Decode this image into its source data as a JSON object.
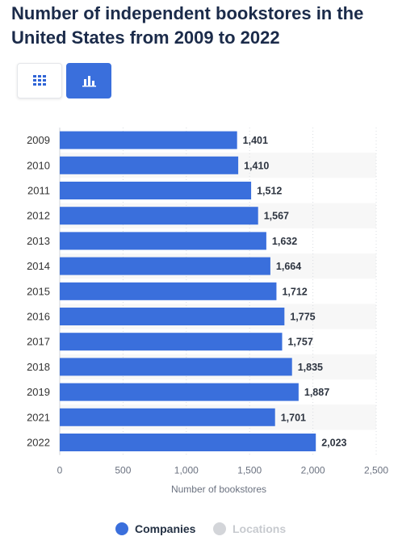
{
  "title": "Number of independent bookstores in the United States from 2009 to 2022",
  "toggles": {
    "table_icon": "grid-icon",
    "chart_icon": "bar-chart-icon",
    "active": "chart"
  },
  "colors": {
    "bar": "#3a6fdc",
    "band": "#f7f7f7",
    "title": "#1b2b4a",
    "legend_inactive": "#d3d5d9"
  },
  "legend": [
    {
      "label": "Companies",
      "color": "#3a6fdc",
      "active": true
    },
    {
      "label": "Locations",
      "color": "#d3d5d9",
      "active": false
    }
  ],
  "chart_data": {
    "type": "bar",
    "orientation": "horizontal",
    "categories": [
      "2009",
      "2010",
      "2011",
      "2012",
      "2013",
      "2014",
      "2015",
      "2016",
      "2017",
      "2018",
      "2019",
      "2021",
      "2022"
    ],
    "series": [
      {
        "name": "Companies",
        "values": [
          1401,
          1410,
          1512,
          1567,
          1632,
          1664,
          1712,
          1775,
          1757,
          1835,
          1887,
          1701,
          2023
        ]
      }
    ],
    "value_labels": [
      "1,401",
      "1,410",
      "1,512",
      "1,567",
      "1,632",
      "1,664",
      "1,712",
      "1,775",
      "1,757",
      "1,835",
      "1,887",
      "1,701",
      "2,023"
    ],
    "xlabel": "Number of bookstores",
    "ylabel": "",
    "xlim": [
      0,
      2500
    ],
    "xticks": [
      0,
      500,
      1000,
      1500,
      2000,
      2500
    ],
    "xtick_labels": [
      "0",
      "500",
      "1,000",
      "1,500",
      "2,000",
      "2,500"
    ],
    "grid": "vertical dotted",
    "legend_position": "bottom"
  }
}
